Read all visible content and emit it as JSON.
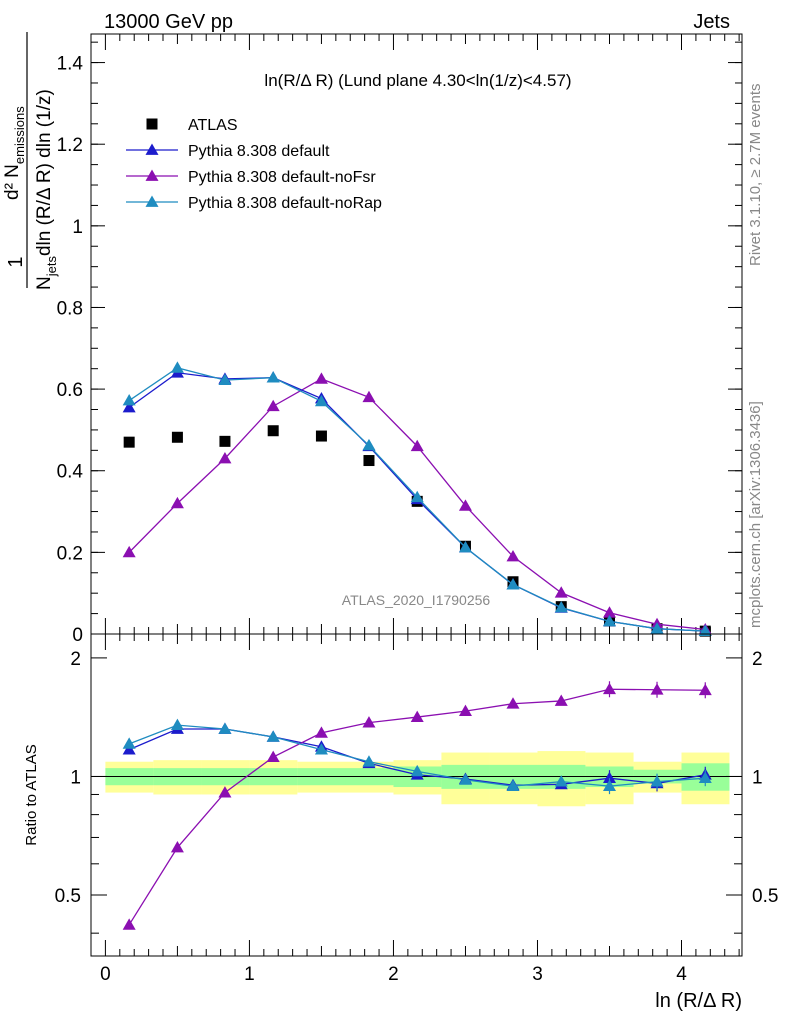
{
  "header": {
    "left": "13000 GeV pp",
    "right": "Jets"
  },
  "side_texts": {
    "rivet": "Rivet 3.1.10, ≥ 2.7M events",
    "mcplots": "mcplots.cern.ch [arXiv:1306.3436]"
  },
  "chart_data": [
    {
      "type": "scatter",
      "title": "ln(R/Δ R) (Lund plane 4.30<ln(1/z)<4.57)",
      "watermark": "ATLAS_2020_I1790256",
      "ylabel": "1/N_jets d²N_emissions / dln(R/Δ R) dln(1/z)",
      "ylim": [
        0,
        1.47
      ],
      "xlim": [
        -0.1,
        4.42
      ],
      "yticks": [
        0,
        0.2,
        0.4,
        0.6,
        0.8,
        1,
        1.2,
        1.4
      ],
      "ytick_labels": [
        "0",
        "0.2",
        "0.4",
        "0.6",
        "0.8",
        "1",
        "1.2",
        "1.4"
      ],
      "legend_position": "top-left",
      "x": [
        0.165,
        0.5,
        0.83,
        1.165,
        1.5,
        1.83,
        2.165,
        2.5,
        2.83,
        3.165,
        3.5,
        3.83,
        4.165
      ],
      "series": [
        {
          "name": "ATLAS",
          "marker": "square",
          "color": "#000000",
          "values": [
            0.47,
            0.482,
            0.472,
            0.498,
            0.485,
            0.425,
            0.325,
            0.215,
            0.128,
            0.067,
            0.032,
            0.013,
            0.007
          ]
        },
        {
          "name": "Pythia 8.308 default",
          "marker": "triangle",
          "color": "#1c1ccc",
          "values": [
            0.555,
            0.64,
            0.625,
            0.628,
            0.577,
            0.46,
            0.33,
            0.212,
            0.121,
            0.064,
            0.031,
            0.013,
            0.007
          ]
        },
        {
          "name": "Pythia 8.308 default-noFsr",
          "marker": "triangle",
          "color": "#8b0fb1",
          "values": [
            0.2,
            0.32,
            0.43,
            0.558,
            0.625,
            0.58,
            0.46,
            0.314,
            0.19,
            0.101,
            0.052,
            0.024,
            0.011
          ]
        },
        {
          "name": "Pythia 8.308 default-noRap",
          "marker": "triangle",
          "color": "#1f8cc0",
          "values": [
            0.572,
            0.652,
            0.622,
            0.628,
            0.57,
            0.462,
            0.335,
            0.212,
            0.121,
            0.065,
            0.031,
            0.013,
            0.007
          ]
        }
      ]
    },
    {
      "type": "scatter",
      "ylabel": "Ratio to ATLAS",
      "xlabel": "ln (R/Δ R)",
      "xlim": [
        -0.1,
        4.42
      ],
      "ylim": [
        0.35,
        2.3
      ],
      "yticks": [
        0.5,
        1,
        2
      ],
      "ytick_labels": [
        "0.5",
        "1",
        "2"
      ],
      "xticks": [
        0,
        1,
        2,
        3,
        4
      ],
      "xtick_labels": [
        "0",
        "1",
        "2",
        "3",
        "4"
      ],
      "x": [
        0.165,
        0.5,
        0.83,
        1.165,
        1.5,
        1.83,
        2.165,
        2.5,
        2.83,
        3.165,
        3.5,
        3.83,
        4.165
      ],
      "bin_edges": [
        0,
        0.333,
        0.667,
        1,
        1.333,
        1.667,
        2,
        2.333,
        2.667,
        3,
        3.333,
        3.667,
        4,
        4.333
      ],
      "band_green": {
        "color": "#99ff99",
        "halfwidths": [
          0.05,
          0.05,
          0.05,
          0.05,
          0.05,
          0.05,
          0.06,
          0.07,
          0.07,
          0.07,
          0.06,
          0.04,
          0.08
        ]
      },
      "band_yellow": {
        "color": "#ffff99",
        "halfwidths": [
          0.09,
          0.1,
          0.1,
          0.1,
          0.09,
          0.09,
          0.1,
          0.15,
          0.15,
          0.16,
          0.15,
          0.09,
          0.15
        ]
      },
      "series": [
        {
          "name": "Pythia 8.308 default",
          "color": "#1c1ccc",
          "values": [
            1.17,
            1.32,
            1.32,
            1.26,
            1.19,
            1.08,
            1.01,
            0.985,
            0.95,
            0.955,
            0.99,
            0.96,
            1.01
          ]
        },
        {
          "name": "Pythia 8.308 default-noFsr",
          "color": "#8b0fb1",
          "values": [
            0.42,
            0.66,
            0.91,
            1.12,
            1.29,
            1.37,
            1.415,
            1.465,
            1.53,
            1.555,
            1.665,
            1.66,
            1.655
          ]
        },
        {
          "name": "Pythia 8.308 default-noRap",
          "color": "#1f8cc0",
          "values": [
            1.21,
            1.35,
            1.32,
            1.26,
            1.17,
            1.09,
            1.03,
            0.98,
            0.945,
            0.97,
            0.945,
            0.97,
            0.99
          ]
        }
      ]
    }
  ]
}
